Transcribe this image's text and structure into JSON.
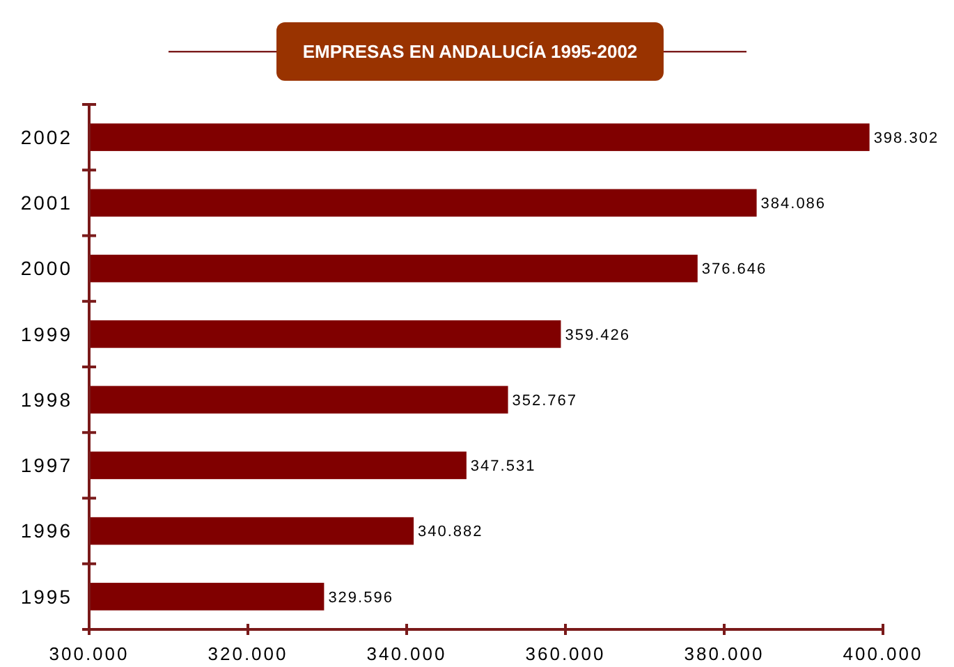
{
  "chart_data": {
    "type": "bar",
    "orientation": "horizontal",
    "title": "EMPRESAS EN ANDALUCÍA 1995-2002",
    "categories": [
      "2002",
      "2001",
      "2000",
      "1999",
      "1998",
      "1997",
      "1996",
      "1995"
    ],
    "values": [
      398302,
      384086,
      376646,
      359426,
      352767,
      347531,
      340882,
      329596
    ],
    "value_labels": [
      "398.302",
      "384.086",
      "376.646",
      "359.426",
      "352.767",
      "347.531",
      "340.882",
      "329.596"
    ],
    "color": "#800000",
    "xlim": [
      300000,
      400000
    ],
    "xticks": [
      {
        "value": 300000,
        "label": "300.000"
      },
      {
        "value": 320000,
        "label": "320.000"
      },
      {
        "value": 340000,
        "label": "340.000"
      },
      {
        "value": 360000,
        "label": "360.000"
      },
      {
        "value": 380000,
        "label": "380.000"
      },
      {
        "value": 400000,
        "label": "400.000"
      }
    ],
    "grid": false
  }
}
